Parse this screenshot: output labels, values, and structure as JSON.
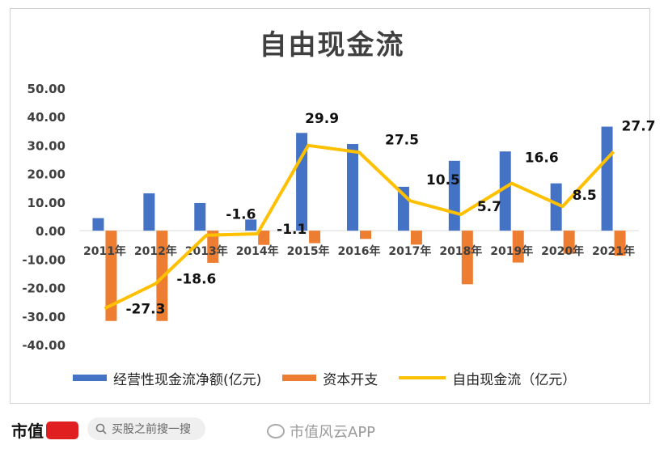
{
  "chart_data": {
    "type": "bar",
    "title": "自由现金流",
    "categories": [
      "2011年",
      "2012年",
      "2013年",
      "2014年",
      "2015年",
      "2016年",
      "2017年",
      "2018年",
      "2019年",
      "2020年",
      "2021年"
    ],
    "ylim": [
      -40,
      50
    ],
    "yticks": [
      "50.00",
      "40.00",
      "30.00",
      "20.00",
      "10.00",
      "0.00",
      "-10.00",
      "-20.00",
      "-30.00",
      "-40.00"
    ],
    "grid": false,
    "legend_position": "bottom",
    "series": [
      {
        "name": "经营性现金流净额(亿元)",
        "type": "bar",
        "color": "#4472C4",
        "values": [
          4.4,
          13.1,
          9.7,
          3.9,
          34.3,
          30.4,
          15.4,
          24.5,
          27.8,
          16.6,
          36.5
        ]
      },
      {
        "name": "资本开支",
        "type": "bar",
        "color": "#ED7D31",
        "values": [
          -31.7,
          -31.7,
          -11.3,
          -5.0,
          -4.4,
          -2.9,
          -4.9,
          -18.8,
          -11.2,
          -8.1,
          -8.8
        ]
      },
      {
        "name": "自由现金流（亿元）",
        "type": "line",
        "color": "#FFC000",
        "values": [
          -27.3,
          -18.6,
          -1.6,
          -1.1,
          29.9,
          27.5,
          10.5,
          5.7,
          16.6,
          8.5,
          27.7
        ]
      }
    ],
    "line_labels": [
      "-27.3",
      "-18.6",
      "-1.6",
      "-1.1",
      "29.9",
      "27.5",
      "10.5",
      "5.7",
      "16.6",
      "8.5",
      "27.7"
    ]
  },
  "footer": {
    "brand": "市值",
    "search_placeholder": "买股之前搜一搜",
    "weibo_text": "市值风云APP"
  }
}
